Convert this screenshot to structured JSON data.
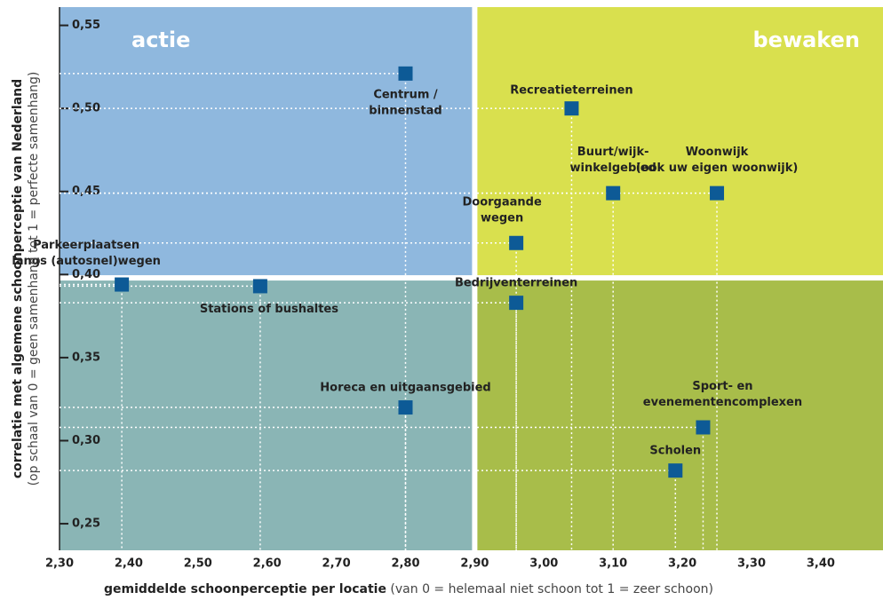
{
  "chart_data": {
    "type": "scatter",
    "x_label": "gemiddelde schoonperceptie per locatie",
    "x_label_note": " (van 0 = helemaal niet schoon tot 1 = zeer schoon)",
    "y_label": "correlatie met algemene schoonperceptie van Nederland",
    "y_label_note": "(op schaal van 0 = geen samenhang tot 1 = perfecte samenhang)",
    "quadrant_labels": [
      "actie",
      "bewaken"
    ],
    "quadrant_split": {
      "x": 2.9,
      "y": 0.398
    },
    "quadrant_colors": [
      "#8fb8de",
      "#d9e04e",
      "#8ab5b5",
      "#a8bd4a"
    ],
    "color": "#0d5a96",
    "labels": [
      [
        "Centrum /",
        "binnenstad"
      ],
      [
        "Recreatieterreinen"
      ],
      [
        "Buurt/wijk-",
        "winkelgebied"
      ],
      [
        "Woonwijk",
        "(ook uw eigen woonwijk)"
      ],
      [
        "Doorgaande",
        "wegen"
      ],
      [
        "Parkeerplaatsen",
        "langs (autosnel)wegen"
      ],
      [
        "Stations of bushaltes"
      ],
      [
        "Bedrijventerreinen"
      ],
      [
        "Horeca en uitgaansgebied"
      ],
      [
        "Sport- en",
        "evenementencomplexen"
      ],
      [
        "Scholen"
      ]
    ],
    "x": [
      2.8,
      3.04,
      3.1,
      3.25,
      2.96,
      2.39,
      2.59,
      2.96,
      2.8,
      3.23,
      3.19
    ],
    "values": [
      0.521,
      0.5,
      0.449,
      0.449,
      0.419,
      0.394,
      0.393,
      0.383,
      0.32,
      0.308,
      0.282
    ],
    "xlim": [
      2.3,
      3.49
    ],
    "ylim": [
      0.234,
      0.561
    ],
    "xticks": [
      {
        "value": 2.3,
        "label": "2,30"
      },
      {
        "value": 2.4,
        "label": "2,40"
      },
      {
        "value": 2.5,
        "label": "2,50"
      },
      {
        "value": 2.6,
        "label": "2,60"
      },
      {
        "value": 2.7,
        "label": "2,70"
      },
      {
        "value": 2.8,
        "label": "2,80"
      },
      {
        "value": 2.9,
        "label": "2,90"
      },
      {
        "value": 3.0,
        "label": "3,00"
      },
      {
        "value": 3.1,
        "label": "3,10"
      },
      {
        "value": 3.2,
        "label": "3,20"
      },
      {
        "value": 3.3,
        "label": "3,30"
      },
      {
        "value": 3.4,
        "label": "3,40"
      }
    ],
    "yticks": [
      {
        "value": 0.25,
        "label": "0,25"
      },
      {
        "value": 0.3,
        "label": "0,30"
      },
      {
        "value": 0.35,
        "label": "0,35"
      },
      {
        "value": 0.4,
        "label": "0,40"
      },
      {
        "value": 0.45,
        "label": "0,45"
      },
      {
        "value": 0.5,
        "label": "0,50"
      },
      {
        "value": 0.55,
        "label": "0,55"
      }
    ]
  }
}
